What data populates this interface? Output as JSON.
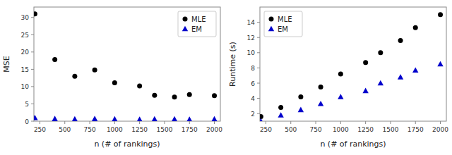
{
  "chart_data": [
    {
      "type": "scatter",
      "x": [
        200,
        400,
        600,
        800,
        1000,
        1250,
        1400,
        1600,
        1750,
        2000
      ],
      "series": [
        {
          "name": "MLE",
          "color": "#000000",
          "marker": "circle",
          "values": [
            31.0,
            17.8,
            13.0,
            14.8,
            11.1,
            10.2,
            7.5,
            7.0,
            7.7,
            7.4
          ]
        },
        {
          "name": "EM",
          "color": "#0000cc",
          "marker": "triangle",
          "values": [
            1.0,
            0.7,
            0.6,
            0.7,
            0.6,
            0.5,
            0.6,
            0.6,
            0.5,
            0.6
          ]
        }
      ],
      "xlabel": "n (# of rankings)",
      "ylabel": "MSE",
      "xlim": [
        190,
        2060
      ],
      "ylim": [
        0,
        33
      ],
      "xticks": [
        250,
        500,
        750,
        1000,
        1250,
        1500,
        1750,
        2000
      ],
      "yticks": [
        0,
        5,
        10,
        15,
        20,
        25,
        30
      ],
      "grid": false,
      "legend": "upper right"
    },
    {
      "type": "scatter",
      "x": [
        200,
        400,
        600,
        800,
        1000,
        1250,
        1400,
        1600,
        1750,
        2000
      ],
      "series": [
        {
          "name": "MLE",
          "color": "#000000",
          "marker": "circle",
          "values": [
            1.6,
            2.8,
            4.2,
            5.5,
            7.2,
            8.7,
            10.0,
            11.6,
            13.3,
            15.0
          ]
        },
        {
          "name": "EM",
          "color": "#0000cc",
          "marker": "triangle",
          "values": [
            1.0,
            1.8,
            2.5,
            3.3,
            4.2,
            5.0,
            6.0,
            6.8,
            7.7,
            8.5
          ]
        }
      ],
      "xlabel": "n (# of rankings)",
      "ylabel": "Runtime (s)",
      "xlim": [
        190,
        2060
      ],
      "ylim": [
        1,
        16
      ],
      "xticks": [
        250,
        500,
        750,
        1000,
        1250,
        1500,
        1750,
        2000
      ],
      "yticks": [
        2,
        4,
        6,
        8,
        10,
        12,
        14
      ],
      "grid": false,
      "legend": "upper left"
    }
  ]
}
